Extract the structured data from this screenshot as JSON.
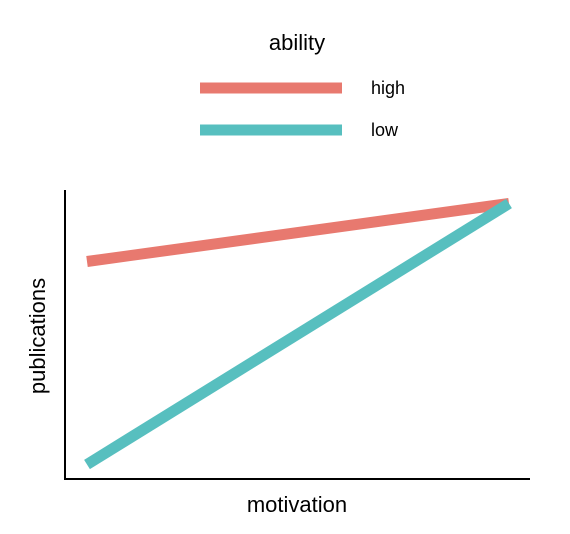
{
  "chart_data": {
    "type": "line",
    "title": "",
    "xlabel": "motivation",
    "ylabel": "publications",
    "x": [
      0,
      1
    ],
    "xlim": [
      0,
      1
    ],
    "ylim": [
      0,
      1
    ],
    "grid": false,
    "legend": {
      "title": "ability",
      "placement": "top"
    },
    "series": [
      {
        "name": "high",
        "values": [
          0.75,
          0.95
        ],
        "color": "#E8796F"
      },
      {
        "name": "low",
        "values": [
          0.05,
          0.95
        ],
        "color": "#57BFBF"
      }
    ]
  }
}
